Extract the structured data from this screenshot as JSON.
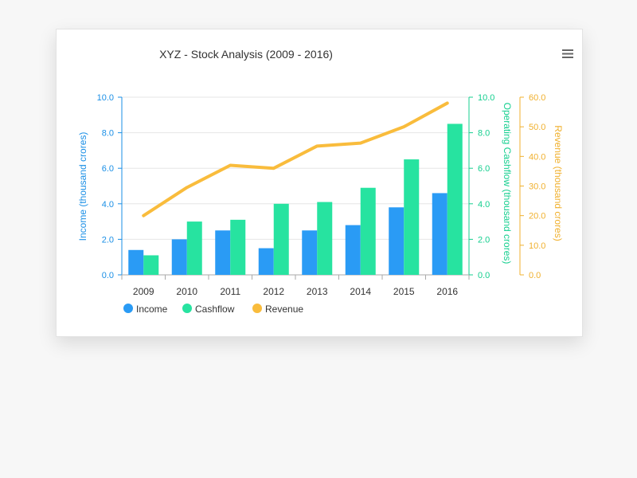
{
  "menu": {
    "icon": "hamburger-menu-icon"
  },
  "chart_data": {
    "type": "bar",
    "title": "XYZ - Stock Analysis (2009 - 2016)",
    "categories": [
      "2009",
      "2010",
      "2011",
      "2012",
      "2013",
      "2014",
      "2015",
      "2016"
    ],
    "series": [
      {
        "name": "Income",
        "type": "bar",
        "axis": "income",
        "color": "#2a9bf5",
        "values": [
          1.4,
          2.0,
          2.5,
          1.5,
          2.5,
          2.8,
          3.8,
          4.6
        ]
      },
      {
        "name": "Cashflow",
        "type": "bar",
        "axis": "cashflow",
        "color": "#27e3a0",
        "values": [
          1.1,
          3.0,
          3.1,
          4.0,
          4.1,
          4.9,
          6.5,
          8.5
        ]
      },
      {
        "name": "Revenue",
        "type": "line",
        "axis": "revenue",
        "color": "#f9bc3c",
        "values": [
          20.0,
          29.5,
          37.0,
          36.0,
          43.5,
          44.5,
          50.0,
          58.0
        ]
      }
    ],
    "axes": {
      "income": {
        "label": "Income (thousand crores)",
        "range": [
          0,
          10
        ],
        "ticks": [
          "0.0",
          "2.0",
          "4.0",
          "6.0",
          "8.0",
          "10.0"
        ],
        "color": "#1a8fe6",
        "side": "left"
      },
      "cashflow": {
        "label": "Operating Cashflow (thousand crores)",
        "range": [
          0,
          10
        ],
        "ticks": [
          "0.0",
          "2.0",
          "4.0",
          "6.0",
          "8.0",
          "10.0"
        ],
        "color": "#15cf8f",
        "side": "right"
      },
      "revenue": {
        "label": "Revenue (thousand crores)",
        "range": [
          0,
          60
        ],
        "ticks": [
          "0.0",
          "10.0",
          "20.0",
          "30.0",
          "40.0",
          "50.0",
          "60.0"
        ],
        "color": "#f0b02d",
        "side": "right"
      }
    },
    "grid": true,
    "legend_position": "bottom-left"
  }
}
